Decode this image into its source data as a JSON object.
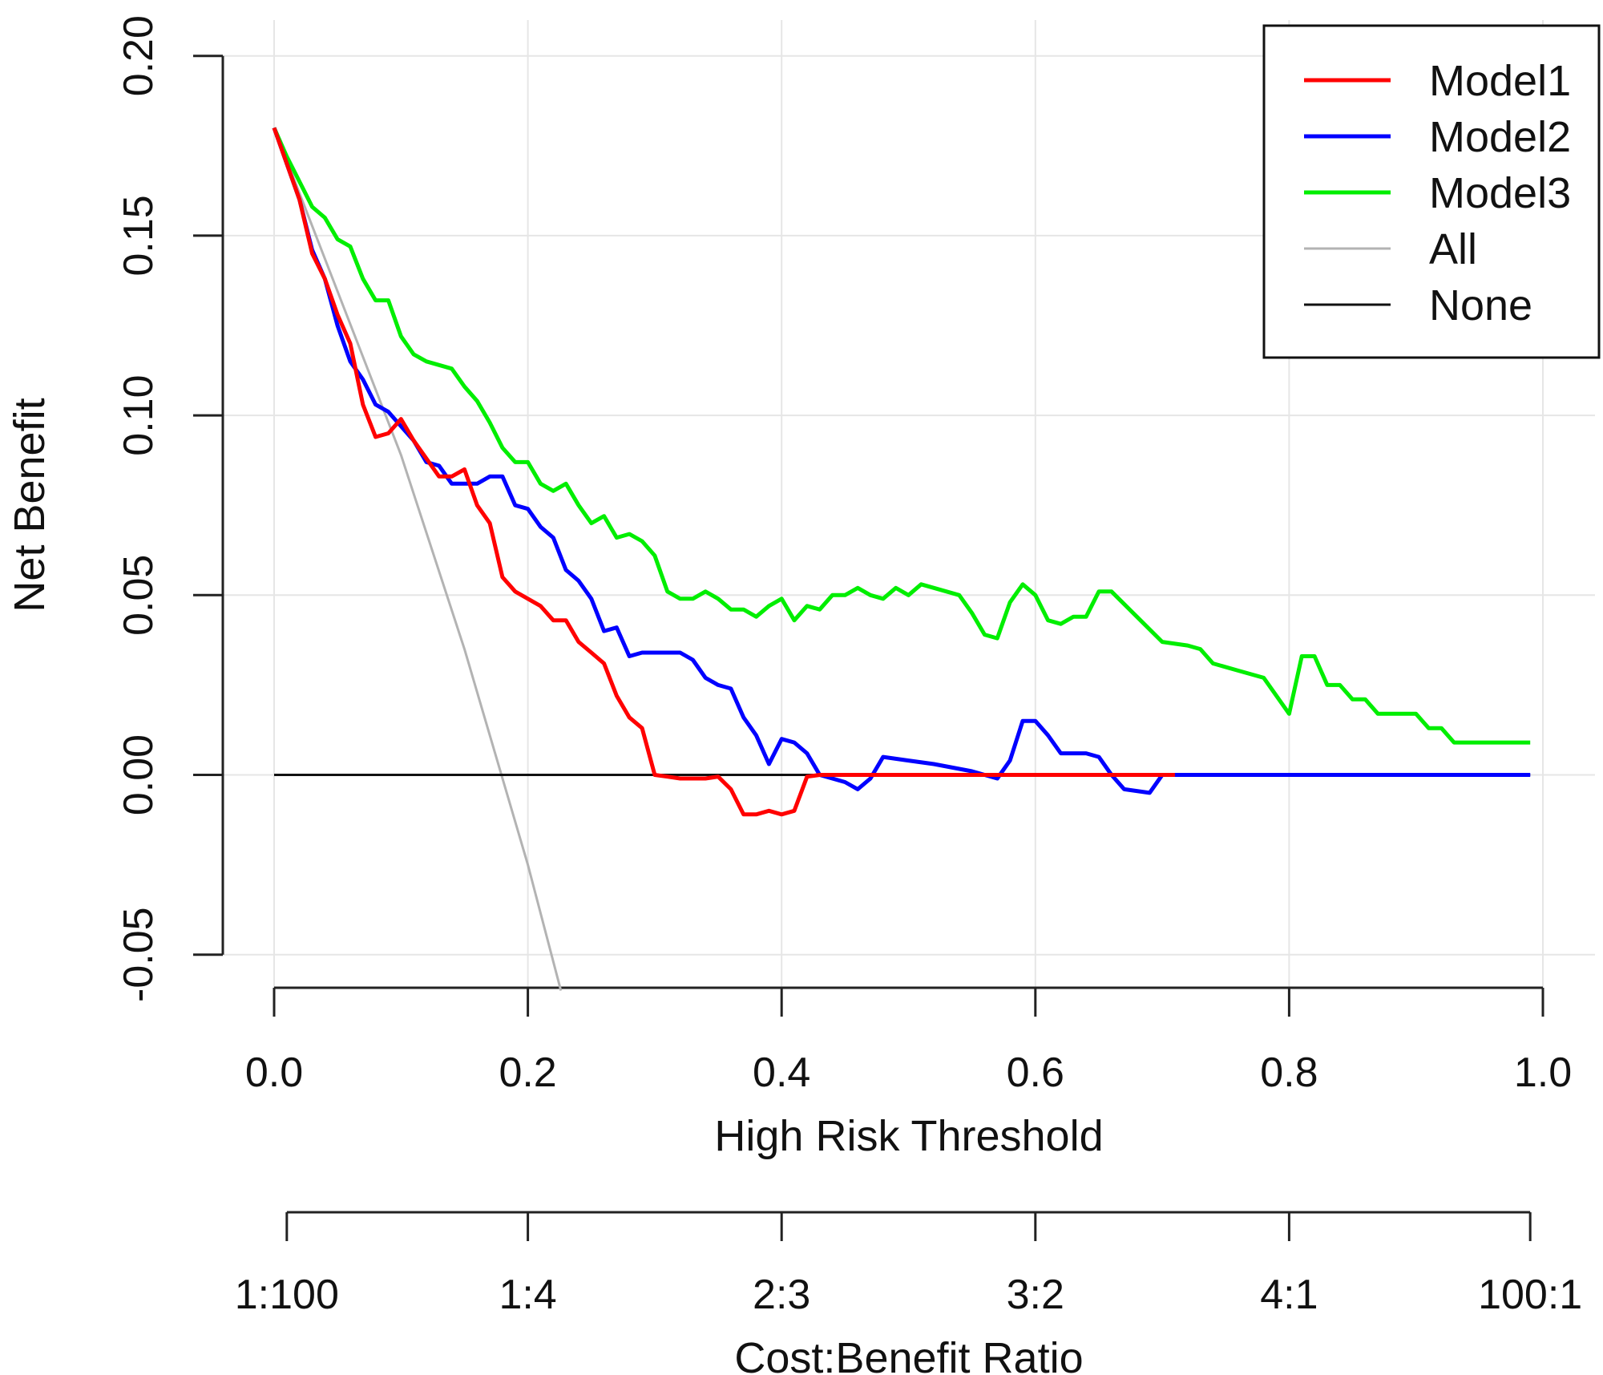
{
  "chart_data": {
    "type": "line",
    "title": "",
    "xlabel": "High Risk Threshold",
    "ylabel": "Net Benefit",
    "secondary_xlabel": "Cost:Benefit Ratio",
    "xlim": [
      0,
      1
    ],
    "ylim": [
      -0.06,
      0.2
    ],
    "x_ticks": [
      {
        "value": 0.0,
        "label": "0.0"
      },
      {
        "value": 0.2,
        "label": "0.2"
      },
      {
        "value": 0.4,
        "label": "0.4"
      },
      {
        "value": 0.6,
        "label": "0.6"
      },
      {
        "value": 0.8,
        "label": "0.8"
      },
      {
        "value": 1.0,
        "label": "1.0"
      }
    ],
    "y_ticks": [
      {
        "value": -0.05,
        "label": "-0.05"
      },
      {
        "value": 0.0,
        "label": "0.00"
      },
      {
        "value": 0.05,
        "label": "0.05"
      },
      {
        "value": 0.1,
        "label": "0.10"
      },
      {
        "value": 0.15,
        "label": "0.15"
      },
      {
        "value": 0.2,
        "label": "0.20"
      }
    ],
    "secondary_ticks": [
      {
        "value": 0.01,
        "label": "1:100"
      },
      {
        "value": 0.2,
        "label": "1:4"
      },
      {
        "value": 0.4,
        "label": "2:3"
      },
      {
        "value": 0.6,
        "label": "3:2"
      },
      {
        "value": 0.8,
        "label": "4:1"
      },
      {
        "value": 0.99,
        "label": "100:1"
      }
    ],
    "grid": true,
    "legend_position": "top-right",
    "series": [
      {
        "name": "Model1",
        "color": "#ff0000",
        "width": 5,
        "points": [
          [
            0,
            0.18
          ],
          [
            0.01,
            0.17
          ],
          [
            0.02,
            0.16
          ],
          [
            0.03,
            0.145
          ],
          [
            0.04,
            0.138
          ],
          [
            0.05,
            0.128
          ],
          [
            0.06,
            0.12
          ],
          [
            0.07,
            0.103
          ],
          [
            0.08,
            0.094
          ],
          [
            0.09,
            0.095
          ],
          [
            0.1,
            0.099
          ],
          [
            0.11,
            0.093
          ],
          [
            0.12,
            0.088
          ],
          [
            0.13,
            0.083
          ],
          [
            0.14,
            0.083
          ],
          [
            0.15,
            0.085
          ],
          [
            0.16,
            0.075
          ],
          [
            0.17,
            0.07
          ],
          [
            0.18,
            0.055
          ],
          [
            0.19,
            0.051
          ],
          [
            0.2,
            0.049
          ],
          [
            0.21,
            0.047
          ],
          [
            0.22,
            0.043
          ],
          [
            0.23,
            0.043
          ],
          [
            0.24,
            0.037
          ],
          [
            0.25,
            0.034
          ],
          [
            0.26,
            0.031
          ],
          [
            0.27,
            0.022
          ],
          [
            0.28,
            0.016
          ],
          [
            0.29,
            0.013
          ],
          [
            0.3,
            0.0
          ],
          [
            0.31,
            -0.0005
          ],
          [
            0.32,
            -0.001
          ],
          [
            0.33,
            -0.001
          ],
          [
            0.34,
            -0.001
          ],
          [
            0.35,
            -0.0005
          ],
          [
            0.36,
            -0.004
          ],
          [
            0.37,
            -0.011
          ],
          [
            0.38,
            -0.011
          ],
          [
            0.39,
            -0.01
          ],
          [
            0.4,
            -0.011
          ],
          [
            0.41,
            -0.01
          ],
          [
            0.42,
            -0.0005
          ],
          [
            0.43,
            0.0
          ],
          [
            0.5,
            0.0
          ],
          [
            0.6,
            0.0
          ],
          [
            0.7,
            0.0
          ],
          [
            0.71,
            0.0
          ]
        ]
      },
      {
        "name": "Model2",
        "color": "#0000ff",
        "width": 5,
        "points": [
          [
            0,
            0.18
          ],
          [
            0.01,
            0.17
          ],
          [
            0.02,
            0.16
          ],
          [
            0.03,
            0.146
          ],
          [
            0.04,
            0.138
          ],
          [
            0.05,
            0.125
          ],
          [
            0.06,
            0.115
          ],
          [
            0.07,
            0.11
          ],
          [
            0.08,
            0.103
          ],
          [
            0.09,
            0.101
          ],
          [
            0.1,
            0.097
          ],
          [
            0.11,
            0.093
          ],
          [
            0.12,
            0.087
          ],
          [
            0.13,
            0.086
          ],
          [
            0.14,
            0.081
          ],
          [
            0.15,
            0.081
          ],
          [
            0.16,
            0.081
          ],
          [
            0.17,
            0.083
          ],
          [
            0.18,
            0.083
          ],
          [
            0.19,
            0.075
          ],
          [
            0.2,
            0.074
          ],
          [
            0.21,
            0.069
          ],
          [
            0.22,
            0.066
          ],
          [
            0.23,
            0.057
          ],
          [
            0.24,
            0.054
          ],
          [
            0.25,
            0.049
          ],
          [
            0.26,
            0.04
          ],
          [
            0.27,
            0.041
          ],
          [
            0.28,
            0.033
          ],
          [
            0.29,
            0.034
          ],
          [
            0.3,
            0.034
          ],
          [
            0.31,
            0.034
          ],
          [
            0.32,
            0.034
          ],
          [
            0.33,
            0.032
          ],
          [
            0.34,
            0.027
          ],
          [
            0.35,
            0.025
          ],
          [
            0.36,
            0.024
          ],
          [
            0.37,
            0.016
          ],
          [
            0.38,
            0.011
          ],
          [
            0.39,
            0.003
          ],
          [
            0.4,
            0.01
          ],
          [
            0.41,
            0.009
          ],
          [
            0.42,
            0.006
          ],
          [
            0.43,
            0.0
          ],
          [
            0.44,
            -0.001
          ],
          [
            0.45,
            -0.002
          ],
          [
            0.46,
            -0.004
          ],
          [
            0.47,
            -0.001
          ],
          [
            0.48,
            0.005
          ],
          [
            0.5,
            0.004
          ],
          [
            0.52,
            0.003
          ],
          [
            0.55,
            0.001
          ],
          [
            0.57,
            -0.001
          ],
          [
            0.58,
            0.004
          ],
          [
            0.59,
            0.015
          ],
          [
            0.6,
            0.015
          ],
          [
            0.61,
            0.011
          ],
          [
            0.62,
            0.006
          ],
          [
            0.64,
            0.006
          ],
          [
            0.65,
            0.005
          ],
          [
            0.66,
            0.0
          ],
          [
            0.67,
            -0.004
          ],
          [
            0.69,
            -0.005
          ],
          [
            0.7,
            0.0
          ],
          [
            0.8,
            0.0
          ],
          [
            0.9,
            0.0
          ],
          [
            0.99,
            0.0
          ]
        ]
      },
      {
        "name": "Model3",
        "color": "#00ee00",
        "width": 5,
        "points": [
          [
            0,
            0.18
          ],
          [
            0.01,
            0.172
          ],
          [
            0.02,
            0.165
          ],
          [
            0.03,
            0.158
          ],
          [
            0.04,
            0.155
          ],
          [
            0.05,
            0.149
          ],
          [
            0.06,
            0.147
          ],
          [
            0.07,
            0.138
          ],
          [
            0.08,
            0.132
          ],
          [
            0.09,
            0.132
          ],
          [
            0.1,
            0.122
          ],
          [
            0.11,
            0.117
          ],
          [
            0.12,
            0.115
          ],
          [
            0.13,
            0.114
          ],
          [
            0.14,
            0.113
          ],
          [
            0.15,
            0.108
          ],
          [
            0.16,
            0.104
          ],
          [
            0.17,
            0.098
          ],
          [
            0.18,
            0.091
          ],
          [
            0.19,
            0.087
          ],
          [
            0.2,
            0.087
          ],
          [
            0.21,
            0.081
          ],
          [
            0.22,
            0.079
          ],
          [
            0.23,
            0.081
          ],
          [
            0.24,
            0.075
          ],
          [
            0.25,
            0.07
          ],
          [
            0.26,
            0.072
          ],
          [
            0.27,
            0.066
          ],
          [
            0.28,
            0.067
          ],
          [
            0.29,
            0.065
          ],
          [
            0.3,
            0.061
          ],
          [
            0.31,
            0.051
          ],
          [
            0.32,
            0.049
          ],
          [
            0.33,
            0.049
          ],
          [
            0.34,
            0.051
          ],
          [
            0.35,
            0.049
          ],
          [
            0.36,
            0.046
          ],
          [
            0.37,
            0.046
          ],
          [
            0.38,
            0.044
          ],
          [
            0.39,
            0.047
          ],
          [
            0.4,
            0.049
          ],
          [
            0.41,
            0.043
          ],
          [
            0.42,
            0.047
          ],
          [
            0.43,
            0.046
          ],
          [
            0.44,
            0.05
          ],
          [
            0.45,
            0.05
          ],
          [
            0.46,
            0.052
          ],
          [
            0.47,
            0.05
          ],
          [
            0.48,
            0.049
          ],
          [
            0.49,
            0.052
          ],
          [
            0.5,
            0.05
          ],
          [
            0.51,
            0.053
          ],
          [
            0.52,
            0.052
          ],
          [
            0.53,
            0.051
          ],
          [
            0.54,
            0.05
          ],
          [
            0.55,
            0.045
          ],
          [
            0.56,
            0.039
          ],
          [
            0.57,
            0.038
          ],
          [
            0.58,
            0.048
          ],
          [
            0.59,
            0.053
          ],
          [
            0.6,
            0.05
          ],
          [
            0.61,
            0.043
          ],
          [
            0.62,
            0.042
          ],
          [
            0.63,
            0.044
          ],
          [
            0.64,
            0.044
          ],
          [
            0.65,
            0.051
          ],
          [
            0.66,
            0.051
          ],
          [
            0.68,
            0.044
          ],
          [
            0.7,
            0.037
          ],
          [
            0.72,
            0.036
          ],
          [
            0.73,
            0.035
          ],
          [
            0.74,
            0.031
          ],
          [
            0.76,
            0.029
          ],
          [
            0.78,
            0.027
          ],
          [
            0.8,
            0.017
          ],
          [
            0.81,
            0.033
          ],
          [
            0.82,
            0.033
          ],
          [
            0.83,
            0.025
          ],
          [
            0.84,
            0.025
          ],
          [
            0.85,
            0.021
          ],
          [
            0.86,
            0.021
          ],
          [
            0.87,
            0.017
          ],
          [
            0.88,
            0.017
          ],
          [
            0.9,
            0.017
          ],
          [
            0.91,
            0.013
          ],
          [
            0.92,
            0.013
          ],
          [
            0.93,
            0.009
          ],
          [
            0.95,
            0.009
          ],
          [
            0.97,
            0.009
          ],
          [
            0.99,
            0.009
          ]
        ]
      },
      {
        "name": "All",
        "color": "#b3b3b3",
        "width": 3,
        "points": [
          [
            0,
            0.18
          ],
          [
            0.1,
            0.089
          ],
          [
            0.15,
            0.035
          ],
          [
            0.2,
            -0.025
          ],
          [
            0.226,
            -0.06
          ]
        ]
      },
      {
        "name": "None",
        "color": "#111111",
        "width": 3,
        "points": [
          [
            0,
            0.0
          ],
          [
            0.99,
            0.0
          ]
        ]
      }
    ]
  }
}
